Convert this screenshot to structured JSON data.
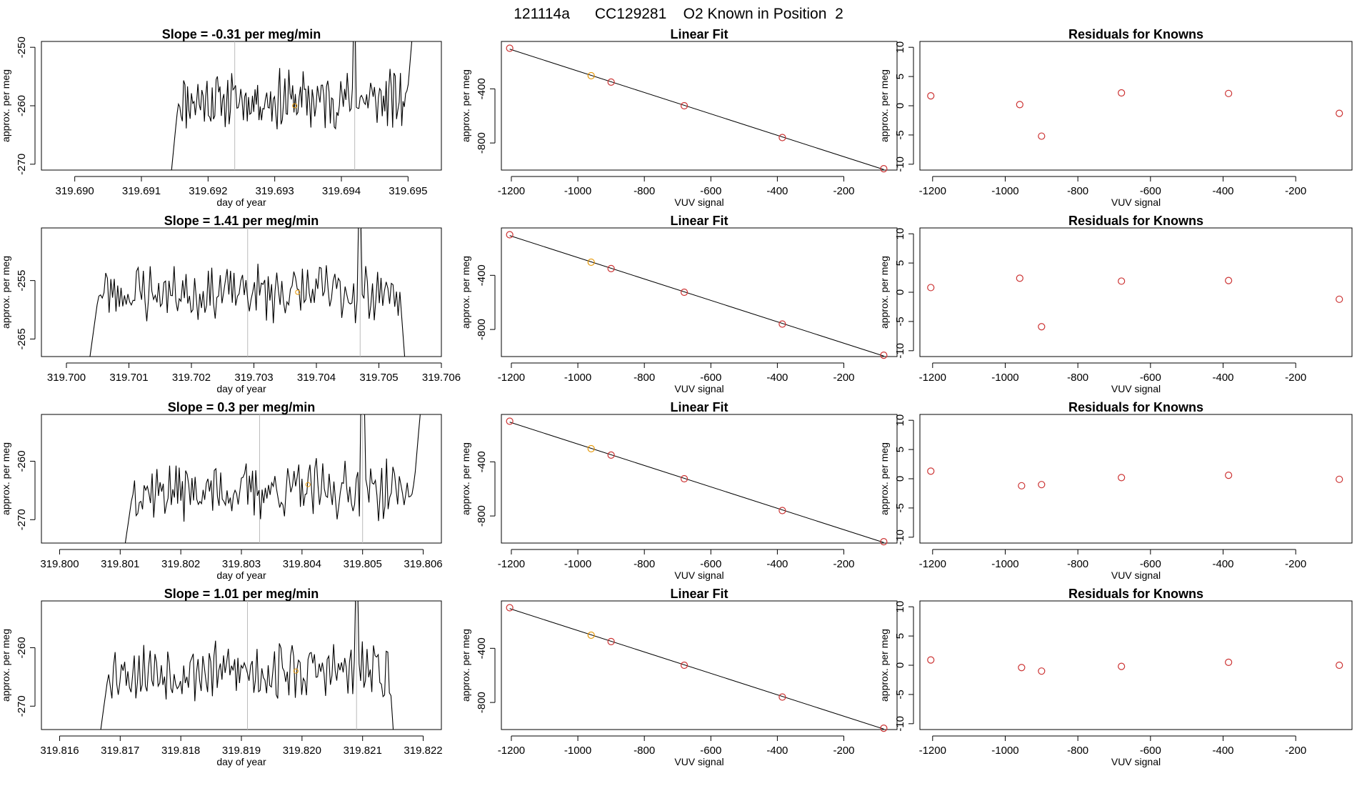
{
  "figure_title": "121114a      CC129281    O2 Known in Position  2",
  "colors": {
    "line": "#000000",
    "point": "#cc3333",
    "highlight": "#e69500",
    "vline": "#bbbbbb"
  },
  "chart_data": [
    {
      "type": "line",
      "row": 0,
      "title": "Slope =  -0.31  per meg/min",
      "xlabel": "day of year",
      "ylabel": "approx. per meg",
      "xlim": [
        319.6895,
        319.6955
      ],
      "ylim": [
        -271,
        -249
      ],
      "xticks": [
        "319.690",
        "319.691",
        "319.692",
        "319.693",
        "319.694",
        "319.695"
      ],
      "xtick_values": [
        319.69,
        319.691,
        319.692,
        319.693,
        319.694,
        319.695
      ],
      "yticks": [
        "-270",
        "-260",
        "-250"
      ],
      "ytick_values": [
        -270,
        -260,
        -250
      ],
      "vlines": [
        319.6924,
        319.6942
      ],
      "series_start": 319.6914,
      "series_end": 319.6951,
      "level": -259,
      "amp": 4,
      "seed": 11,
      "marker": [
        319.6933,
        -260
      ]
    },
    {
      "type": "line",
      "row": 1,
      "title": "Slope =  1.41  per meg/min",
      "xlabel": "day of year",
      "ylabel": "approx. per meg",
      "xlim": [
        319.6996,
        319.706
      ],
      "ylim": [
        -268,
        -246
      ],
      "xticks": [
        "319.700",
        "319.701",
        "319.702",
        "319.703",
        "319.704",
        "319.705",
        "319.706"
      ],
      "xtick_values": [
        319.7,
        319.701,
        319.702,
        319.703,
        319.704,
        319.705,
        319.706
      ],
      "yticks": [
        "-265",
        "-255"
      ],
      "ytick_values": [
        -265,
        -255
      ],
      "vlines": [
        319.7029,
        319.7047
      ],
      "series_start": 319.7003,
      "series_end": 319.7055,
      "level": -257,
      "amp": 4,
      "seed": 23,
      "marker": [
        319.7037,
        -257
      ]
    },
    {
      "type": "line",
      "row": 2,
      "title": "Slope =  0.3  per meg/min",
      "xlabel": "day of year",
      "ylabel": "approx. per meg",
      "xlim": [
        319.7997,
        319.8063
      ],
      "ylim": [
        -274,
        -252
      ],
      "xticks": [
        "319.800",
        "319.801",
        "319.802",
        "319.803",
        "319.804",
        "319.805",
        "319.806"
      ],
      "xtick_values": [
        319.8,
        319.801,
        319.802,
        319.803,
        319.804,
        319.805,
        319.806
      ],
      "yticks": [
        "-270",
        "-260"
      ],
      "ytick_values": [
        -270,
        -260
      ],
      "vlines": [
        319.8033,
        319.805
      ],
      "series_start": 319.801,
      "series_end": 319.806,
      "level": -265,
      "amp": 4,
      "seed": 37,
      "marker": [
        319.8041,
        -264
      ]
    },
    {
      "type": "line",
      "row": 3,
      "title": "Slope =  1.01  per meg/min",
      "xlabel": "day of year",
      "ylabel": "approx. per meg",
      "xlim": [
        319.8157,
        319.8223
      ],
      "ylim": [
        -274,
        -252
      ],
      "xticks": [
        "319.816",
        "319.817",
        "319.818",
        "319.819",
        "319.820",
        "319.821",
        "319.822"
      ],
      "xtick_values": [
        319.816,
        319.817,
        319.818,
        319.819,
        319.82,
        319.821,
        319.822
      ],
      "yticks": [
        "-270",
        "-260"
      ],
      "ytick_values": [
        -270,
        -260
      ],
      "vlines": [
        319.8191,
        319.8209
      ],
      "series_start": 319.8166,
      "series_end": 319.8216,
      "level": -264,
      "amp": 4,
      "seed": 53,
      "marker": [
        319.8199,
        -264
      ]
    },
    {
      "type": "scatter",
      "kind": "fit",
      "title": "Linear Fit",
      "xlabel": "VUV signal",
      "ylabel": "approx. per meg",
      "xlim": [
        -1230,
        -40
      ],
      "ylim": [
        -1000,
        -50
      ],
      "xticks": [
        "-1200",
        "-1000",
        "-800",
        "-600",
        "-400",
        "-200"
      ],
      "xtick_values": [
        -1200,
        -1000,
        -800,
        -600,
        -400,
        -200
      ],
      "yticks": [
        "-400",
        "-800"
      ],
      "ytick_values": [
        -400,
        -800
      ],
      "x": [
        -1205,
        -960,
        -900,
        -680,
        -385,
        -80
      ],
      "y": [
        -100,
        -303,
        -350,
        -525,
        -760,
        -990
      ],
      "highlight_index": 1
    },
    {
      "type": "scatter",
      "kind": "residuals",
      "title": "Residuals for Knowns",
      "xlabel": "VUV signal",
      "ylabel": "approx. per meg",
      "xlim": [
        -1235,
        -45
      ],
      "ylim": [
        -11,
        11
      ],
      "xticks": [
        "-1200",
        "-1000",
        "-800",
        "-600",
        "-400",
        "-200"
      ],
      "xtick_values": [
        -1200,
        -1000,
        -800,
        -600,
        -400,
        -200
      ],
      "yticks": [
        "-10",
        "-5",
        "0",
        "5",
        "10"
      ],
      "ytick_values": [
        -10,
        -5,
        0,
        5,
        10
      ],
      "rows": [
        {
          "x": [
            -1205,
            -960,
            -900,
            -680,
            -385,
            -80
          ],
          "y": [
            1.7,
            0.2,
            -5.2,
            2.2,
            2.1,
            -1.3
          ]
        },
        {
          "x": [
            -1205,
            -960,
            -900,
            -680,
            -385,
            -80
          ],
          "y": [
            0.8,
            2.4,
            -5.9,
            1.9,
            2.0,
            -1.2
          ]
        },
        {
          "x": [
            -1205,
            -955,
            -900,
            -680,
            -385,
            -80
          ],
          "y": [
            1.3,
            -1.2,
            -1.0,
            0.2,
            0.6,
            -0.1
          ]
        },
        {
          "x": [
            -1205,
            -955,
            -900,
            -680,
            -385,
            -80
          ],
          "y": [
            0.9,
            -0.4,
            -1.0,
            -0.2,
            0.5,
            0.0
          ]
        }
      ]
    }
  ]
}
